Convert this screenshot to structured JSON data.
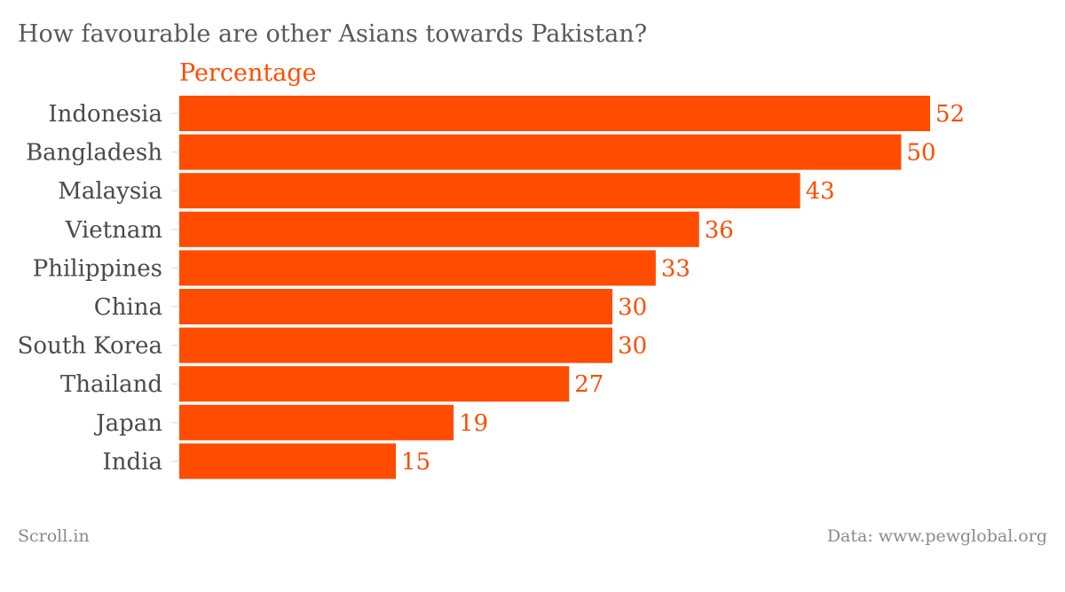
{
  "chart_data": {
    "type": "bar",
    "orientation": "horizontal",
    "title": "How favourable are other Asians towards Pakistan?",
    "series_label": "Percentage",
    "categories": [
      "Indonesia",
      "Bangladesh",
      "Malaysia",
      "Vietnam",
      "Philippines",
      "China",
      "South Korea",
      "Thailand",
      "Japan",
      "India"
    ],
    "series": [
      {
        "name": "Percentage",
        "values": [
          52,
          50,
          43,
          36,
          33,
          30,
          30,
          27,
          19,
          15
        ]
      }
    ],
    "xlim": [
      0,
      52
    ],
    "grid": false,
    "data_labels": true,
    "bar_color": "#ff4c00"
  },
  "footer": {
    "source_left": "Scroll.in",
    "source_right": "Data: www.pewglobal.org"
  }
}
